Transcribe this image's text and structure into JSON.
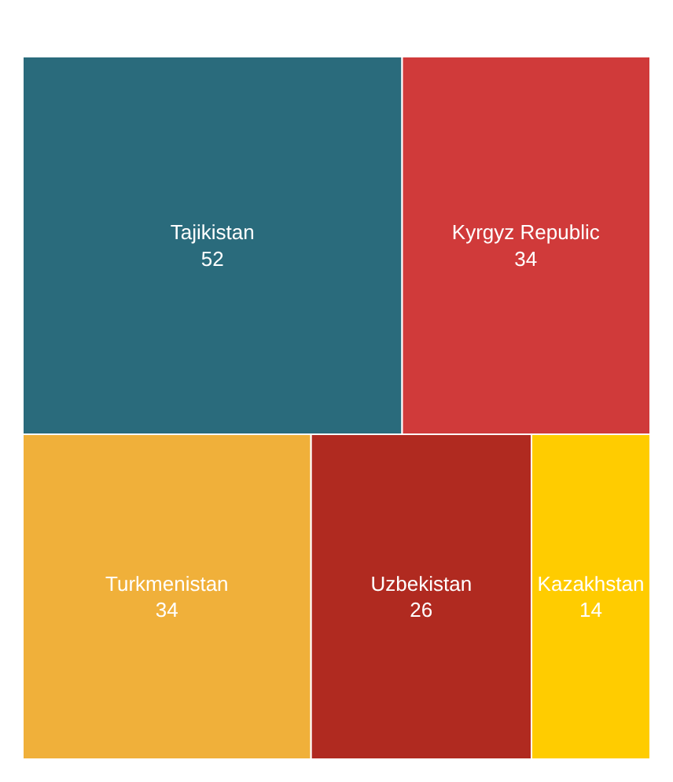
{
  "chart_data": {
    "type": "other",
    "categories": [
      "Tajikistan",
      "Kyrgyz Republic",
      "Turkmenistan",
      "Uzbekistan",
      "Kazakhstan"
    ],
    "values": [
      52,
      34,
      34,
      26,
      14
    ],
    "colors": [
      "#2a6b7c",
      "#d03a3a",
      "#f0b03a",
      "#b02a20",
      "#ffcc00"
    ],
    "data_labels": true
  }
}
